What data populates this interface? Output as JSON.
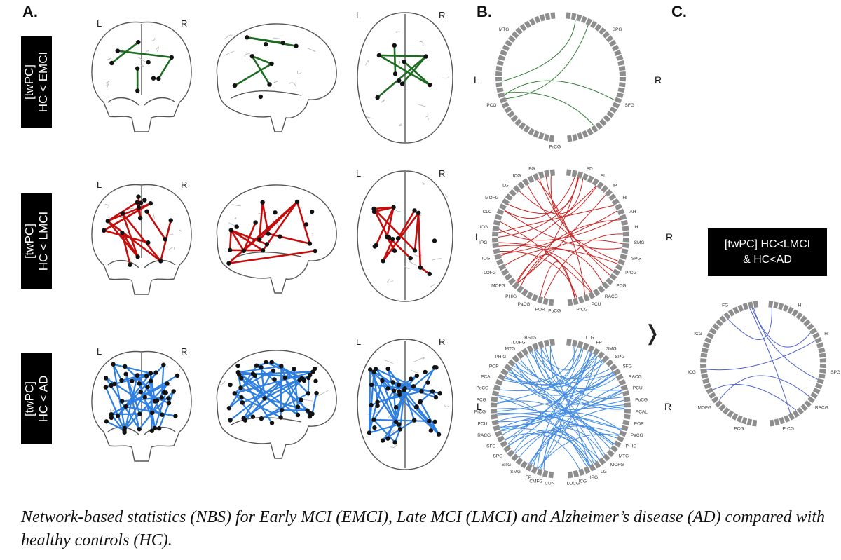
{
  "panels": {
    "a": "A.",
    "b": "B.",
    "c": "C."
  },
  "rows": [
    {
      "label_line1": "[twPC]",
      "label_line2": "HC < EMCI",
      "color": "#1e6b22"
    },
    {
      "label_line1": "[twPC]",
      "label_line2": "HC < LMCI",
      "color": "#c40d0d"
    },
    {
      "label_line1": "[twPC]",
      "label_line2": "HC < AD",
      "color": "#2f7fe0"
    }
  ],
  "hemisphere": {
    "left": "L",
    "right": "R"
  },
  "circle_labels": {
    "emci": [
      "MTG",
      "PCG",
      "PrCG",
      "SFG",
      "SPG"
    ],
    "lmci": [
      "FG",
      "ICG",
      "LG",
      "MOFG",
      "CLC",
      "ICG",
      "IPG",
      "ICG",
      "LOFG",
      "MOFG",
      "PHIG",
      "PaCG",
      "POR",
      "PoCG",
      "PrCG",
      "PCU",
      "RACG",
      "PCG",
      "PrCG",
      "SPG",
      "SMG",
      "IH",
      "AH",
      "HI",
      "IP",
      "AL",
      "AD"
    ],
    "ad": [
      "BSTS",
      "LOFG",
      "MTG",
      "PHIG",
      "POP",
      "PCAL",
      "PoCG",
      "PCG",
      "PrCG",
      "PCU",
      "RACG",
      "SFG",
      "SPG",
      "STG",
      "SMG",
      "FP",
      "CMFG",
      "CUN",
      "LOCG",
      "ICG",
      "IPG",
      "LG",
      "MOFG",
      "MTG",
      "PHIG",
      "PaCG",
      "POR",
      "PCAL",
      "PoCG",
      "PCU",
      "RACG",
      "SFG",
      "SPG",
      "SMG",
      "FP",
      "TTG"
    ],
    "c": [
      "FG",
      "ICG",
      "ICG",
      "MOFG",
      "PCG",
      "PrCG",
      "RACG",
      "SPG",
      "HI",
      "HI"
    ]
  },
  "c_box": {
    "line1": "[twPC] HC<LMCI",
    "line2": "& HC<AD"
  },
  "caption": "Network-based statistics (NBS) for Early MCI (EMCI), Late MCI (LMCI) and Alzheimer’s disease (AD) compared with healthy controls (HC)."
}
